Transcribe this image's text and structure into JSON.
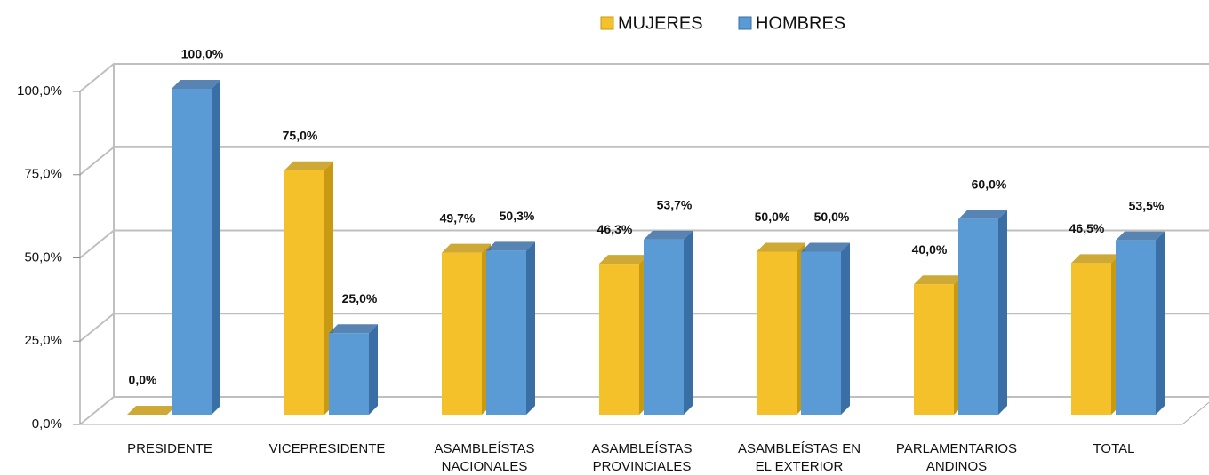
{
  "chart_data": {
    "type": "bar3d",
    "categories": [
      "PRESIDENTE",
      "VICEPRESIDENTE",
      "ASAMBLEÍSTAS NACIONALES",
      "ASAMBLEÍSTAS PROVINCIALES",
      "ASAMBLEÍSTAS EN EL EXTERIOR",
      "PARLAMENTARIOS ANDINOS",
      "TOTAL"
    ],
    "series": [
      {
        "name": "MUJERES",
        "color": "#f5c12a",
        "side": "#c79a12",
        "values": [
          0,
          75,
          49.7,
          46.3,
          50,
          40,
          46.5
        ],
        "value_labels": [
          "0,0%",
          "75,0%",
          "49,7%",
          "46,3%",
          "50,0%",
          "40,0%",
          "46,5%"
        ]
      },
      {
        "name": "HOMBRES",
        "color": "#5b9bd5",
        "side": "#3a6fa5",
        "values": [
          100,
          25,
          50.3,
          53.7,
          50,
          60,
          53.5
        ],
        "value_labels": [
          "100,0%",
          "25,0%",
          "50,3%",
          "53,7%",
          "50,0%",
          "60,0%",
          "53,5%"
        ]
      }
    ],
    "ylim": [
      0,
      100
    ],
    "yticks": [
      {
        "value": 0,
        "label": "0,0%"
      },
      {
        "value": 25,
        "label": "25,0%"
      },
      {
        "value": 50,
        "label": "50,0%"
      },
      {
        "value": 75,
        "label": "75,0%"
      },
      {
        "value": 100,
        "label": "100,0%"
      }
    ],
    "grid": true,
    "legend": "top"
  }
}
